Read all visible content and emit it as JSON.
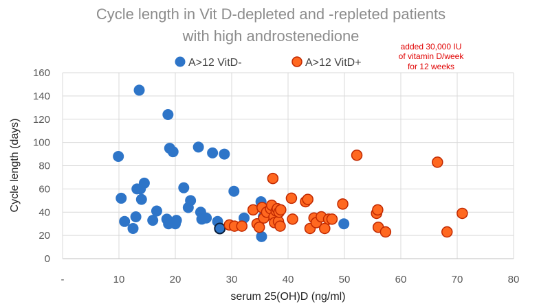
{
  "chart_data": {
    "type": "scatter",
    "title_lines": [
      "Cycle length in Vit D-depleted and -repleted patients",
      "with high androstenedione"
    ],
    "xlabel": "serum 25(OH)D (ng/ml)",
    "ylabel": "Cycle length (days)",
    "xlim": [
      0,
      80
    ],
    "ylim": [
      0,
      160
    ],
    "x_ticks": [
      "-",
      "10",
      "20",
      "30",
      "40",
      "50",
      "60",
      "70",
      "80"
    ],
    "y_ticks": [
      "0",
      "20",
      "40",
      "60",
      "80",
      "100",
      "120",
      "140",
      "160"
    ],
    "grid": true,
    "legend_position": "top",
    "annotation_lines": [
      "added 30,000 IU",
      "of vitamin D/week",
      "for 12 weeks"
    ],
    "series": [
      {
        "name": "A>12 VitD-",
        "color": "#2e75c8",
        "edge": "#2e75c8",
        "points": [
          [
            9.9,
            88
          ],
          [
            10.4,
            52
          ],
          [
            11.0,
            32
          ],
          [
            12.5,
            26
          ],
          [
            13.0,
            36
          ],
          [
            13.2,
            60
          ],
          [
            13.6,
            145
          ],
          [
            13.8,
            60
          ],
          [
            14.0,
            51
          ],
          [
            14.5,
            65
          ],
          [
            16.0,
            33
          ],
          [
            16.7,
            41
          ],
          [
            18.5,
            34
          ],
          [
            18.7,
            124
          ],
          [
            18.8,
            30
          ],
          [
            19.0,
            95
          ],
          [
            19.6,
            92
          ],
          [
            20.0,
            30
          ],
          [
            20.2,
            33
          ],
          [
            21.5,
            61
          ],
          [
            22.3,
            44
          ],
          [
            22.7,
            50
          ],
          [
            24.1,
            96
          ],
          [
            24.5,
            40
          ],
          [
            24.7,
            34
          ],
          [
            25.5,
            35
          ],
          [
            26.6,
            91
          ],
          [
            27.5,
            32
          ],
          [
            27.9,
            26
          ],
          [
            28.7,
            90
          ],
          [
            30.4,
            58
          ],
          [
            32.2,
            35
          ],
          [
            35.2,
            49
          ],
          [
            35.3,
            19
          ],
          [
            35.6,
            36
          ],
          [
            49.9,
            30
          ]
        ],
        "outlined_point_index": 28
      },
      {
        "name": "A>12 VitD+",
        "color": "#ff6820",
        "edge": "#c02800",
        "points": [
          [
            29.6,
            29
          ],
          [
            30.5,
            28
          ],
          [
            31.8,
            28
          ],
          [
            33.8,
            42
          ],
          [
            34.5,
            30
          ],
          [
            34.9,
            27
          ],
          [
            35.4,
            44
          ],
          [
            35.7,
            35
          ],
          [
            36.2,
            40
          ],
          [
            36.9,
            43
          ],
          [
            37.1,
            46
          ],
          [
            37.3,
            69
          ],
          [
            37.5,
            36
          ],
          [
            37.6,
            31
          ],
          [
            37.9,
            41
          ],
          [
            38.1,
            43
          ],
          [
            38.3,
            32
          ],
          [
            38.4,
            40
          ],
          [
            38.6,
            28
          ],
          [
            38.7,
            42
          ],
          [
            40.6,
            52
          ],
          [
            40.8,
            34
          ],
          [
            43.1,
            49
          ],
          [
            43.5,
            51
          ],
          [
            43.9,
            26
          ],
          [
            44.6,
            35
          ],
          [
            45.0,
            31
          ],
          [
            45.9,
            36
          ],
          [
            46.5,
            26
          ],
          [
            47.2,
            34
          ],
          [
            47.8,
            34
          ],
          [
            49.7,
            47
          ],
          [
            52.2,
            89
          ],
          [
            55.7,
            39
          ],
          [
            55.9,
            42
          ],
          [
            56.0,
            27
          ],
          [
            57.3,
            23
          ],
          [
            66.5,
            83
          ],
          [
            68.2,
            23
          ],
          [
            70.9,
            39
          ]
        ]
      }
    ]
  }
}
